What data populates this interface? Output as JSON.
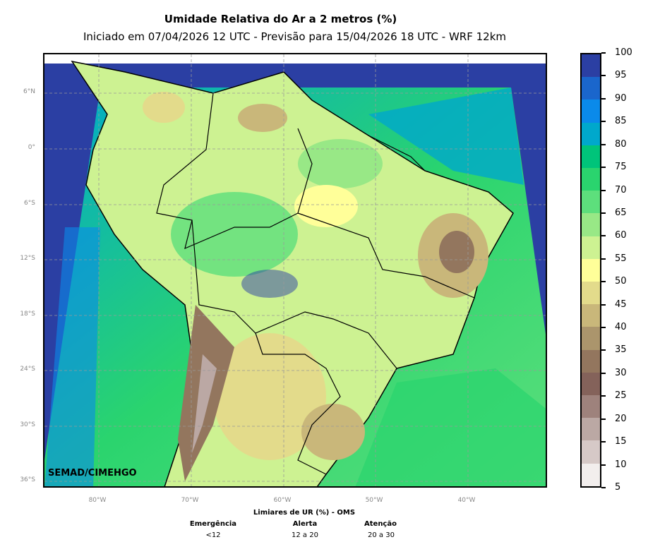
{
  "title": "Umidade Relativa do Ar a 2 metros (%)",
  "subtitle": "Iniciado em 07/04/2026 12 UTC - Previsão para 15/04/2026 18 UTC - WRF 12km",
  "credit": "SEMAD/CIMEHGO",
  "lat_labels": [
    "6°N",
    "0°",
    "6°S",
    "12°S",
    "18°S",
    "24°S",
    "30°S",
    "36°S"
  ],
  "lon_labels": [
    "80°W",
    "70°W",
    "60°W",
    "50°W",
    "40°W"
  ],
  "colorbar": {
    "ticks": [
      "100",
      "95",
      "90",
      "85",
      "80",
      "75",
      "70",
      "65",
      "60",
      "55",
      "50",
      "45",
      "40",
      "35",
      "30",
      "25",
      "20",
      "15",
      "10",
      "5"
    ],
    "colors": [
      "#2b3fa3",
      "#1a66cc",
      "#0a8aea",
      "#00a8cc",
      "#00c47a",
      "#2ad46e",
      "#5ddf7c",
      "#98e886",
      "#cdf292",
      "#ffff99",
      "#e3db8b",
      "#c9b77a",
      "#ab956c",
      "#93765e",
      "#84625a",
      "#9e827c",
      "#bba8a4",
      "#d6c9c7",
      "#f2eeed"
    ]
  },
  "legend": {
    "title": "Limiares de UR (%) - OMS",
    "columns": [
      {
        "label": "Emergência",
        "value": "<12"
      },
      {
        "label": "Alerta",
        "value": "12 a 20"
      },
      {
        "label": "Atenção",
        "value": "20 a 30"
      }
    ]
  }
}
